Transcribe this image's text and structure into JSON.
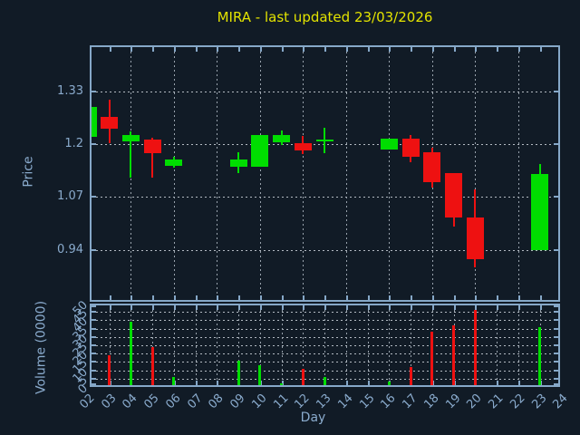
{
  "title": "MIRA - last updated 23/03/2026",
  "axes": {
    "price_label": "Price",
    "volume_label": "Volume (0000)",
    "x_label": "Day",
    "price_ticks": [
      "1.33",
      "1.2",
      "1.07",
      "0.94"
    ],
    "volume_ticks": [
      "50",
      "45",
      "40",
      "35",
      "30",
      "25",
      "20",
      "15",
      "10",
      "5",
      "0"
    ],
    "x_ticks": [
      "02",
      "03",
      "04",
      "05",
      "06",
      "07",
      "08",
      "09",
      "10",
      "11",
      "12",
      "13",
      "14",
      "15",
      "16",
      "17",
      "18",
      "19",
      "20",
      "21",
      "22",
      "23",
      "24"
    ]
  },
  "colors": {
    "background": "#111b26",
    "axis": "#86a8c8",
    "tick_label": "#8aabcd",
    "grid": "#b3bac2",
    "title": "#e3e300",
    "up": "#00dd00",
    "down": "#ee1111"
  },
  "chart_data": {
    "type": "candlestick",
    "title": "MIRA - last updated 23/03/2026",
    "xlabel": "Day",
    "ylabel": "Price",
    "volume_ylabel": "Volume (0000)",
    "legend": "none",
    "grid": "dotted",
    "price_ylim": [
      0.812,
      1.444
    ],
    "volume_ylim": [
      0,
      50
    ],
    "price_gridlines": [
      1.33,
      1.2,
      1.07,
      0.94
    ],
    "volume_gridlines": [
      45,
      40,
      35,
      30,
      25,
      20,
      15,
      10,
      5
    ],
    "x_day_range": [
      2,
      24
    ],
    "candles": [
      {
        "day": 2,
        "open": 1.218,
        "high": 1.292,
        "low": 1.218,
        "close": 1.292,
        "volume": 0
      },
      {
        "day": 3,
        "open": 1.268,
        "high": 1.31,
        "low": 1.202,
        "close": 1.239,
        "volume": 19
      },
      {
        "day": 4,
        "open": 1.207,
        "high": 1.232,
        "low": 1.119,
        "close": 1.223,
        "volume": 39
      },
      {
        "day": 5,
        "open": 1.212,
        "high": 1.216,
        "low": 1.117,
        "close": 1.178,
        "volume": 24
      },
      {
        "day": 6,
        "open": 1.148,
        "high": 1.169,
        "low": 1.143,
        "close": 1.163,
        "volume": 6
      },
      {
        "day": 9,
        "open": 1.145,
        "high": 1.181,
        "low": 1.128,
        "close": 1.163,
        "volume": 16
      },
      {
        "day": 10,
        "open": 1.145,
        "high": 1.223,
        "low": 1.145,
        "close": 1.223,
        "volume": 13
      },
      {
        "day": 11,
        "open": 1.206,
        "high": 1.234,
        "low": 1.198,
        "close": 1.223,
        "volume": 2
      },
      {
        "day": 12,
        "open": 1.203,
        "high": 1.221,
        "low": 1.175,
        "close": 1.185,
        "volume": 11
      },
      {
        "day": 13,
        "open": 1.212,
        "high": 1.241,
        "low": 1.178,
        "close": 1.212,
        "volume": 6
      },
      {
        "day": 16,
        "open": 1.188,
        "high": 1.214,
        "low": 1.188,
        "close": 1.214,
        "volume": 3
      },
      {
        "day": 17,
        "open": 1.214,
        "high": 1.223,
        "low": 1.156,
        "close": 1.169,
        "volume": 12
      },
      {
        "day": 18,
        "open": 1.18,
        "high": 1.191,
        "low": 1.093,
        "close": 1.107,
        "volume": 33
      },
      {
        "day": 19,
        "open": 1.13,
        "high": 1.13,
        "low": 0.998,
        "close": 1.02,
        "volume": 37
      },
      {
        "day": 20,
        "open": 1.02,
        "high": 1.089,
        "low": 0.897,
        "close": 0.918,
        "volume": 46
      },
      {
        "day": 23,
        "open": 0.94,
        "high": 1.151,
        "low": 0.94,
        "close": 1.126,
        "volume": 36
      }
    ]
  }
}
